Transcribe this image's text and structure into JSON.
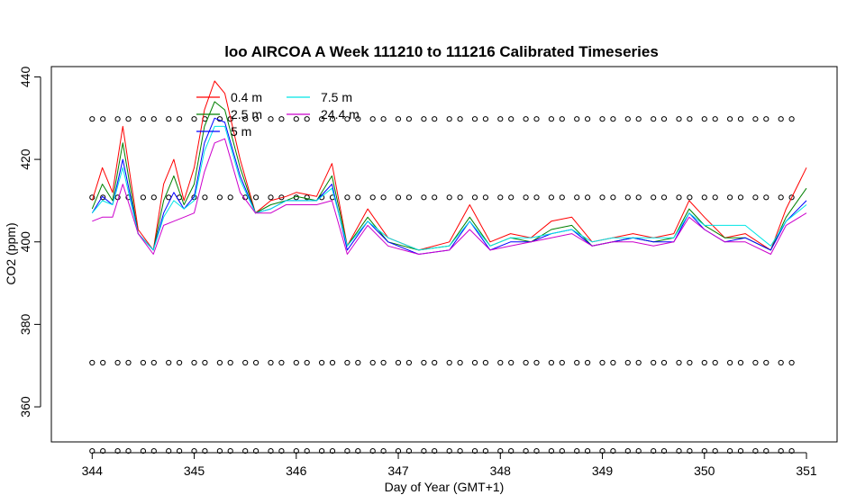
{
  "chart_data": {
    "type": "line",
    "title": "loo AIRCOA A  Week 111210 to 111216  Calibrated Timeseries",
    "xlabel": "Day of Year (GMT+1)",
    "ylabel": "CO2 (ppm)",
    "xlim": [
      343.6,
      351.3
    ],
    "ylim": [
      351.5,
      442.5
    ],
    "x_ticks": [
      "344",
      "345",
      "346",
      "347",
      "348",
      "349",
      "350",
      "351"
    ],
    "y_ticks": [
      "360",
      "380",
      "400",
      "420",
      "440"
    ],
    "legend_position": "top-left",
    "grid": false,
    "series": [
      {
        "name": "0.4 m",
        "color": "#ff0000",
        "x": [
          344.0,
          344.1,
          344.2,
          344.3,
          344.45,
          344.6,
          344.7,
          344.8,
          344.9,
          345.0,
          345.1,
          345.2,
          345.3,
          345.45,
          345.6,
          345.75,
          345.9,
          346.0,
          346.2,
          346.35,
          346.5,
          346.7,
          346.9,
          347.2,
          347.5,
          347.7,
          347.9,
          348.1,
          348.3,
          348.5,
          348.7,
          348.9,
          349.1,
          349.3,
          349.5,
          349.7,
          349.85,
          350.0,
          350.2,
          350.4,
          350.65,
          350.8,
          351.0
        ],
        "y": [
          410,
          418,
          412,
          428,
          403,
          398,
          414,
          420,
          410,
          418,
          432,
          439,
          436,
          420,
          407,
          410,
          411,
          412,
          411,
          419,
          399,
          408,
          401,
          398,
          400,
          409,
          400,
          402,
          401,
          405,
          406,
          400,
          401,
          402,
          401,
          402,
          410,
          406,
          401,
          402,
          398,
          408,
          418
        ]
      },
      {
        "name": "2.5 m",
        "color": "#008000",
        "x": [
          344.0,
          344.1,
          344.2,
          344.3,
          344.45,
          344.6,
          344.7,
          344.8,
          344.9,
          345.0,
          345.1,
          345.2,
          345.3,
          345.45,
          345.6,
          345.75,
          345.9,
          346.0,
          346.2,
          346.35,
          346.5,
          346.7,
          346.9,
          347.2,
          347.5,
          347.7,
          347.9,
          348.1,
          348.3,
          348.5,
          348.7,
          348.9,
          349.1,
          349.3,
          349.5,
          349.7,
          349.85,
          350.0,
          350.2,
          350.4,
          350.65,
          350.8,
          351.0
        ],
        "y": [
          408,
          414,
          410,
          424,
          402,
          398,
          410,
          416,
          409,
          414,
          428,
          434,
          432,
          418,
          407,
          409,
          410,
          411,
          410,
          416,
          399,
          406,
          400,
          398,
          399,
          406,
          399,
          401,
          400,
          403,
          404,
          399,
          400,
          401,
          400,
          401,
          408,
          404,
          401,
          401,
          398,
          406,
          413
        ]
      },
      {
        "name": "5 m",
        "color": "#0000ff",
        "x": [
          344.0,
          344.1,
          344.2,
          344.3,
          344.45,
          344.6,
          344.7,
          344.8,
          344.9,
          345.0,
          345.1,
          345.2,
          345.3,
          345.45,
          345.6,
          345.75,
          345.9,
          346.0,
          346.2,
          346.35,
          346.5,
          346.7,
          346.9,
          347.2,
          347.5,
          347.7,
          347.9,
          348.1,
          348.3,
          348.5,
          348.7,
          348.9,
          349.1,
          349.3,
          349.5,
          349.7,
          349.85,
          350.0,
          350.2,
          350.4,
          350.65,
          350.8,
          351.0
        ],
        "y": [
          407,
          411,
          409,
          420,
          402,
          398,
          407,
          412,
          408,
          411,
          424,
          430,
          429,
          416,
          407,
          408,
          410,
          410,
          410,
          414,
          398,
          405,
          400,
          397,
          398,
          405,
          398,
          400,
          400,
          402,
          403,
          399,
          400,
          401,
          400,
          400,
          407,
          403,
          400,
          401,
          398,
          405,
          410
        ]
      },
      {
        "name": "7.5 m",
        "color": "#00e5e5",
        "x": [
          344.0,
          344.1,
          344.2,
          344.3,
          344.45,
          344.6,
          344.7,
          344.8,
          344.9,
          345.0,
          345.1,
          345.2,
          345.3,
          345.45,
          345.6,
          345.75,
          345.9,
          346.0,
          346.2,
          346.35,
          346.5,
          346.7,
          346.9,
          347.2,
          347.5,
          347.7,
          347.9,
          348.1,
          348.3,
          348.5,
          348.7,
          348.9,
          349.1,
          349.3,
          349.5,
          349.7,
          349.85,
          350.0,
          350.2,
          350.4,
          350.65,
          350.8,
          351.0
        ],
        "y": [
          407,
          410,
          409,
          418,
          402,
          398,
          406,
          410,
          408,
          410,
          422,
          428,
          428,
          415,
          407,
          408,
          410,
          410,
          410,
          413,
          399,
          405,
          401,
          398,
          399,
          405,
          399,
          401,
          401,
          402,
          403,
          400,
          401,
          401,
          401,
          401,
          407,
          404,
          404,
          404,
          399,
          405,
          409
        ]
      },
      {
        "name": "24.4 m",
        "color": "#cc00cc",
        "x": [
          344.0,
          344.1,
          344.2,
          344.3,
          344.45,
          344.6,
          344.7,
          344.8,
          344.9,
          345.0,
          345.1,
          345.2,
          345.3,
          345.45,
          345.6,
          345.75,
          345.9,
          346.0,
          346.2,
          346.35,
          346.5,
          346.7,
          346.9,
          347.2,
          347.5,
          347.7,
          347.9,
          348.1,
          348.3,
          348.5,
          348.7,
          348.9,
          349.1,
          349.3,
          349.5,
          349.7,
          349.85,
          350.0,
          350.2,
          350.4,
          350.65,
          350.8,
          351.0
        ],
        "y": [
          405,
          406,
          406,
          414,
          402,
          397,
          404,
          405,
          406,
          407,
          417,
          424,
          425,
          412,
          407,
          407,
          409,
          409,
          409,
          410,
          397,
          404,
          399,
          397,
          398,
          403,
          398,
          399,
          400,
          401,
          402,
          399,
          400,
          400,
          399,
          400,
          406,
          403,
          400,
          400,
          397,
          404,
          407
        ]
      }
    ],
    "reference_levels": [
      {
        "value": 429.8,
        "color": "#000000"
      },
      {
        "value": 410.8,
        "color": "#000000"
      },
      {
        "value": 370.7,
        "color": "#000000"
      },
      {
        "value": 349.3,
        "color": "#000000"
      }
    ]
  }
}
